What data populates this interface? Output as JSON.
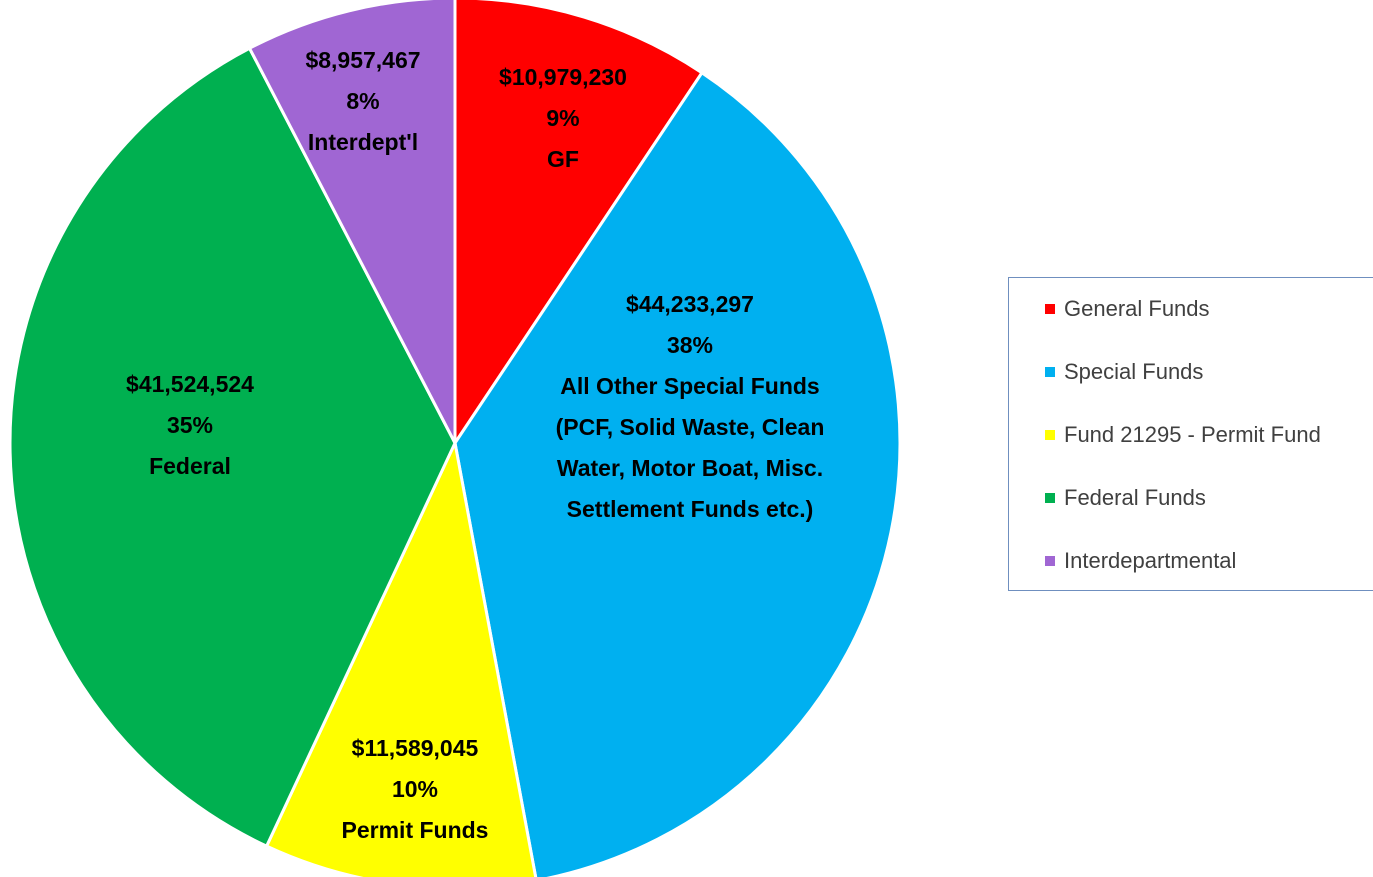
{
  "chart_data": {
    "type": "pie",
    "categories": [
      "General Funds",
      "Special Funds",
      "Fund 21295 - Permit Fund",
      "Federal Funds",
      "Interdepartmental"
    ],
    "values": [
      10979230,
      44233297,
      11589045,
      41524524,
      8957467
    ],
    "value_labels": [
      "$10,979,230",
      "$44,233,297",
      "$11,589,045",
      "$41,524,524",
      "$8,957,467"
    ],
    "percent_labels": [
      "9%",
      "38%",
      "10%",
      "35%",
      "8%"
    ],
    "slice_labels": [
      "GF",
      "All Other Special Funds (PCF, Solid Waste, Clean Water, Motor Boat, Misc. Settlement Funds etc.)",
      "Permit Funds",
      "Federal",
      "Interdept'l"
    ],
    "colors": [
      "#ff0000",
      "#00b0f0",
      "#ffff00",
      "#00b050",
      "#a066d3"
    ],
    "legend": "right"
  }
}
